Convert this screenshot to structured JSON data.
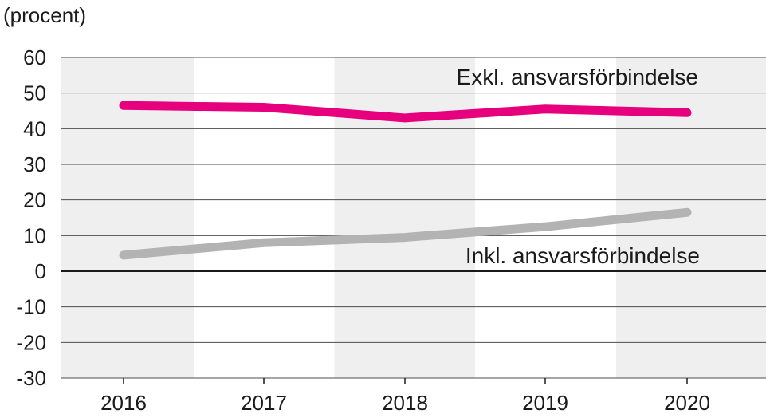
{
  "chart_data": {
    "type": "line",
    "ylabel": "(procent)",
    "categories": [
      "2016",
      "2017",
      "2018",
      "2019",
      "2020"
    ],
    "ylim": [
      -30,
      60
    ],
    "yticks": [
      60,
      50,
      40,
      30,
      20,
      10,
      0,
      -10,
      -20,
      -30
    ],
    "grid": true,
    "alternating_column_shading": true,
    "series": [
      {
        "name": "Exkl. ansvarsförbindelse",
        "color": "#e6007e",
        "values": [
          46.5,
          46,
          43,
          45.5,
          44.5
        ]
      },
      {
        "name": "Inkl. ansvarsförbindelse",
        "color": "#b3b3b3",
        "values": [
          4.5,
          8,
          9.5,
          12.5,
          16.5
        ]
      }
    ]
  }
}
